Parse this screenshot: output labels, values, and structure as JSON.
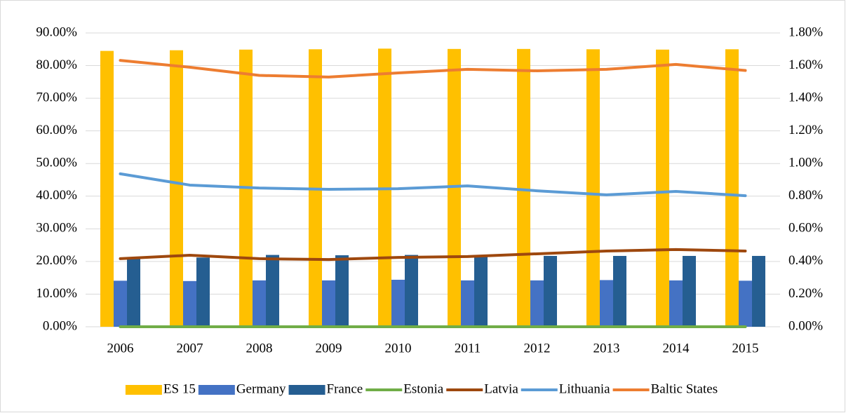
{
  "chart_data": {
    "type": "bar",
    "categories": [
      "2006",
      "2007",
      "2008",
      "2009",
      "2010",
      "2011",
      "2012",
      "2013",
      "2014",
      "2015"
    ],
    "series": [
      {
        "name": "ES 15",
        "type": "bar",
        "color": "#ffc000",
        "values": [
          84.5,
          84.7,
          84.9,
          85.0,
          85.2,
          85.1,
          85.1,
          85.0,
          84.9,
          85.0
        ]
      },
      {
        "name": "Germany",
        "type": "bar",
        "color": "#4472c4",
        "values": [
          14.1,
          14.0,
          14.2,
          14.2,
          14.4,
          14.2,
          14.2,
          14.3,
          14.2,
          14.1
        ]
      },
      {
        "name": "France",
        "type": "bar",
        "color": "#255e91",
        "values": [
          20.9,
          21.2,
          22.0,
          21.9,
          22.0,
          21.8,
          21.7,
          21.7,
          21.7,
          21.7
        ]
      },
      {
        "name": "Estonia",
        "type": "line",
        "axis": "y2",
        "color": "#70ad47",
        "values": [
          0,
          0,
          0,
          0,
          0,
          0,
          0,
          0,
          0,
          0
        ]
      },
      {
        "name": "Latvia",
        "type": "line",
        "axis": "y2",
        "color": "#9e480e",
        "values": [
          0.417,
          0.438,
          0.417,
          0.412,
          0.425,
          0.43,
          0.447,
          0.464,
          0.473,
          0.464
        ]
      },
      {
        "name": "Lithuania",
        "type": "line",
        "axis": "y2",
        "color": "#5b9bd5",
        "values": [
          0.937,
          0.868,
          0.85,
          0.842,
          0.846,
          0.863,
          0.833,
          0.808,
          0.829,
          0.803
        ]
      },
      {
        "name": "Baltic States",
        "type": "line",
        "axis": "y2",
        "color": "#ed7d31",
        "values": [
          1.632,
          1.59,
          1.54,
          1.53,
          1.555,
          1.577,
          1.568,
          1.577,
          1.607,
          1.57
        ]
      }
    ],
    "ylim": [
      0,
      90
    ],
    "yticks": [
      {
        "value": 0,
        "label": "0.00%"
      },
      {
        "value": 10,
        "label": "10.00%"
      },
      {
        "value": 20,
        "label": "20.00%"
      },
      {
        "value": 30,
        "label": "30.00%"
      },
      {
        "value": 40,
        "label": "40.00%"
      },
      {
        "value": 50,
        "label": "50.00%"
      },
      {
        "value": 60,
        "label": "60.00%"
      },
      {
        "value": 70,
        "label": "70.00%"
      },
      {
        "value": 80,
        "label": "80.00%"
      },
      {
        "value": 90,
        "label": "90.00%"
      }
    ],
    "y2lim": [
      0,
      1.8
    ],
    "y2ticks": [
      {
        "value": 0,
        "label": "0.00%"
      },
      {
        "value": 0.2,
        "label": "0.20%"
      },
      {
        "value": 0.4,
        "label": "0.40%"
      },
      {
        "value": 0.6,
        "label": "0.60%"
      },
      {
        "value": 0.8,
        "label": "0.80%"
      },
      {
        "value": 1.0,
        "label": "1.00%"
      },
      {
        "value": 1.2,
        "label": "1.20%"
      },
      {
        "value": 1.4,
        "label": "1.40%"
      },
      {
        "value": 1.6,
        "label": "1.60%"
      },
      {
        "value": 1.8,
        "label": "1.80%"
      }
    ],
    "grid": true,
    "legend": "bottom"
  }
}
